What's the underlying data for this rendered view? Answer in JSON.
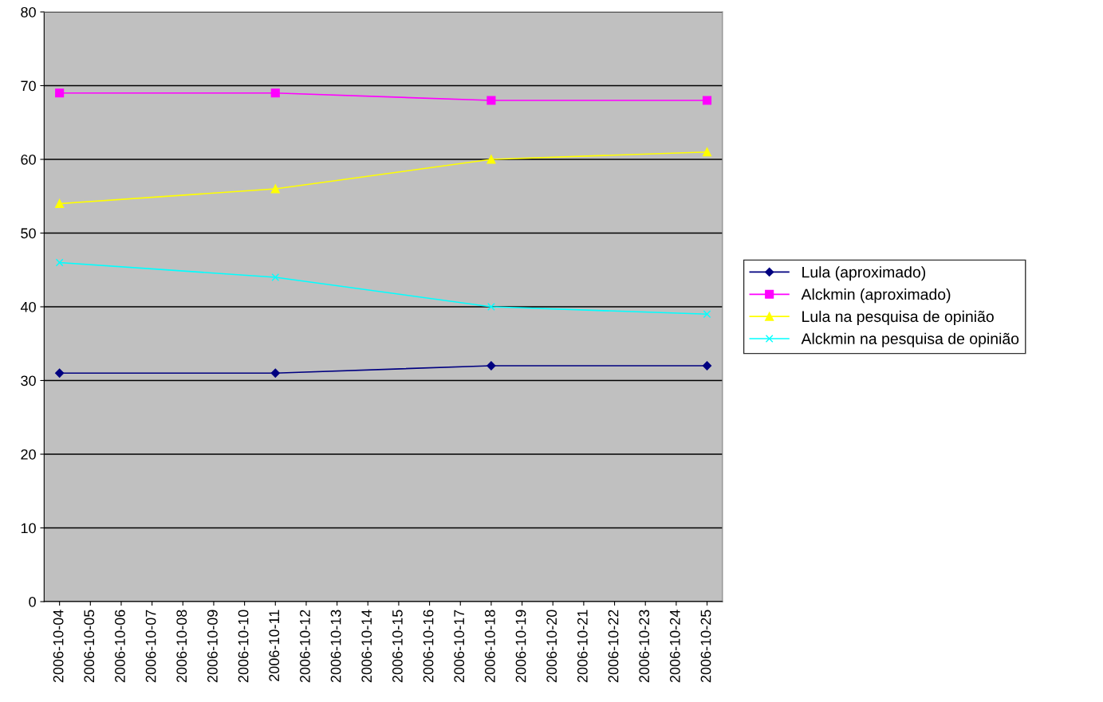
{
  "chart_data": {
    "type": "line",
    "x": [
      "2006-10-04",
      "2006-10-11",
      "2006-10-18",
      "2006-10-25"
    ],
    "xlim": [
      "2006-10-03T12:00",
      "2006-10-25T12:00"
    ],
    "xticks": [
      "2006-10-04",
      "2006-10-05",
      "2006-10-06",
      "2006-10-07",
      "2006-10-08",
      "2006-10-09",
      "2006-10-10",
      "2006-10-11",
      "2006-10-12",
      "2006-10-13",
      "2006-10-14",
      "2006-10-15",
      "2006-10-16",
      "2006-10-17",
      "2006-10-18",
      "2006-10-19",
      "2006-10-20",
      "2006-10-21",
      "2006-10-22",
      "2006-10-23",
      "2006-10-24",
      "2006-10-25"
    ],
    "ylim": [
      0,
      80
    ],
    "yticks": [
      0,
      10,
      20,
      30,
      40,
      50,
      60,
      70,
      80
    ],
    "grid": "y",
    "legend": "right",
    "line_style": "solid",
    "series": [
      {
        "name": "Lula (aproximado)",
        "color": "#000080",
        "marker": "diamond",
        "values": [
          31,
          31,
          32,
          32
        ]
      },
      {
        "name": "Alckmin (aproximado)",
        "color": "#ff00ff",
        "marker": "square",
        "values": [
          69,
          69,
          68,
          68
        ]
      },
      {
        "name": "Lula na pesquisa de opinião",
        "color": "#ffff00",
        "marker": "triangle",
        "values": [
          54,
          56,
          60,
          61
        ]
      },
      {
        "name": "Alckmin na pesquisa de opinião",
        "color": "#00ffff",
        "marker": "cross",
        "values": [
          46,
          44,
          40,
          39
        ]
      }
    ]
  }
}
